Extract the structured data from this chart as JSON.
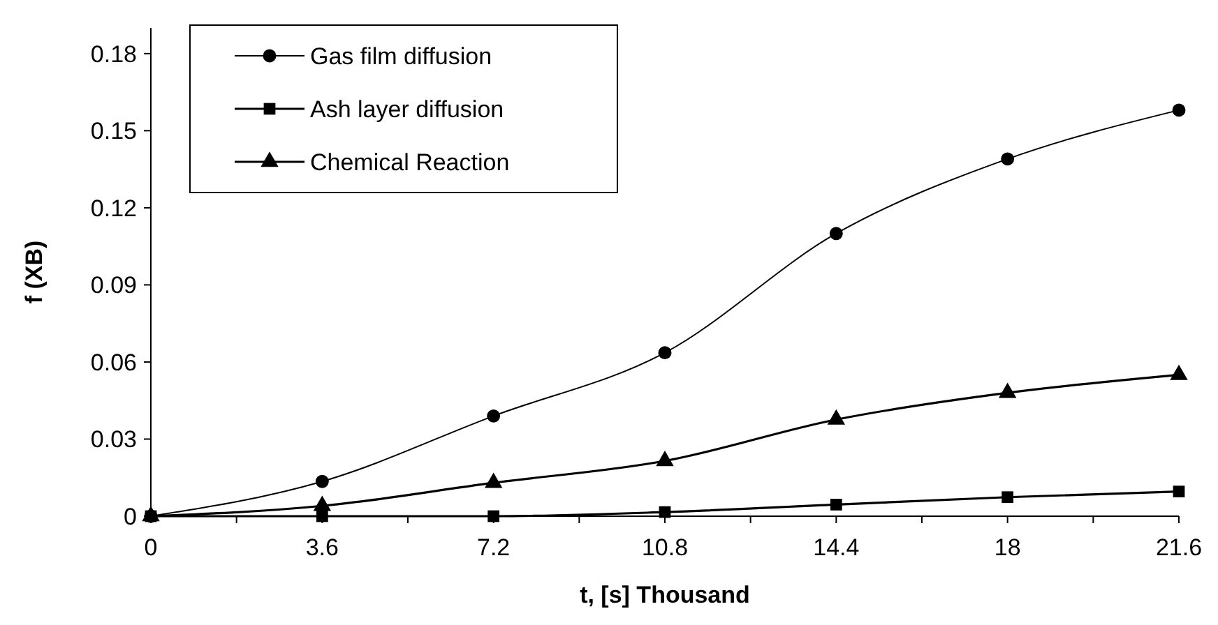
{
  "chart_data": {
    "type": "line",
    "xlabel": "t, [s] Thousand",
    "ylabel": "f (XB)",
    "x": [
      0,
      3.6,
      7.2,
      10.8,
      14.4,
      18,
      21.6
    ],
    "series": [
      {
        "name": "Gas film diffusion",
        "color": "#000000",
        "marker": "circle",
        "values": [
          0,
          0.0135,
          0.039,
          0.0636,
          0.11,
          0.139,
          0.158
        ]
      },
      {
        "name": "Ash layer diffusion",
        "color": "#000000",
        "marker": "square",
        "values": [
          0,
          0,
          0,
          0.0016,
          0.0045,
          0.0074,
          0.0096
        ]
      },
      {
        "name": "Chemical Reaction",
        "color": "#000000",
        "marker": "triangle",
        "values": [
          0,
          0.004,
          0.013,
          0.0215,
          0.0376,
          0.048,
          0.055
        ]
      }
    ],
    "xlim": [
      0,
      21.6
    ],
    "xticks": [
      0,
      {
        "value": 1.8,
        "label": null
      },
      3.6,
      {
        "value": 5.4,
        "label": null
      },
      7.2,
      {
        "value": 9,
        "label": null
      },
      10.8,
      {
        "value": 12.6,
        "label": null
      },
      14.4,
      {
        "value": 16.2,
        "label": null
      },
      18,
      {
        "value": 19.8,
        "label": null
      },
      21.6
    ],
    "ylim": [
      0,
      0.19
    ],
    "yticks": [
      0,
      0.03,
      0.06,
      0.09,
      0.12,
      0.15,
      0.18
    ],
    "legend": "top left",
    "grid": false,
    "line_style": "solid"
  }
}
